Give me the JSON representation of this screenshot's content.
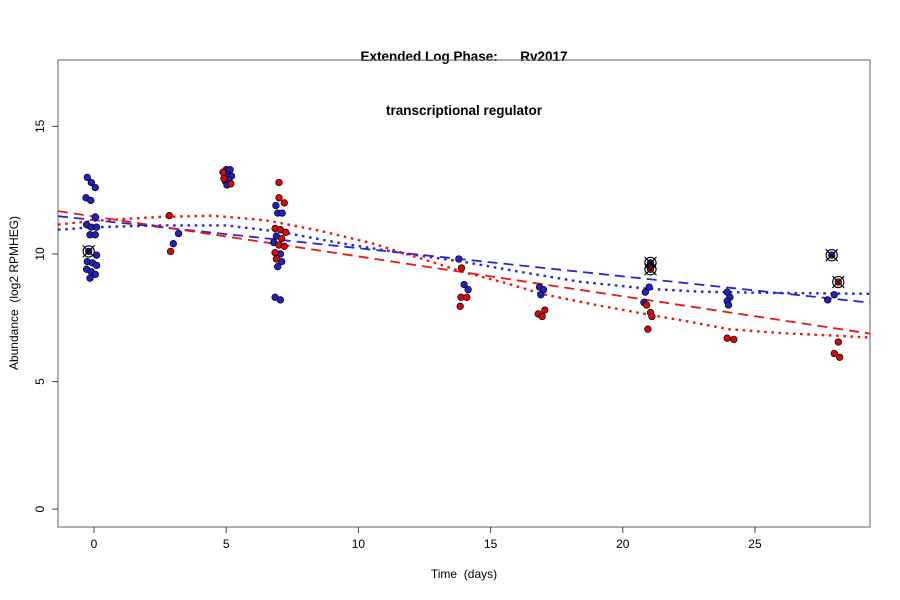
{
  "figure": {
    "title_line1": "Extended Log Phase:      Rv2017",
    "title_line2": "transcriptional regulator",
    "xlabel": "Time  (days)",
    "ylabel": "Abundance  (log2 RPMHEG)"
  },
  "chart_data": {
    "type": "scatter",
    "title": "Extended Log Phase: Rv2017 transcriptional regulator",
    "xlabel": "Time (days)",
    "ylabel": "Abundance (log2 RPMHEG)",
    "xlim": [
      -1.36,
      29.35
    ],
    "ylim": [
      -0.7,
      17.6
    ],
    "x_ticks": [
      0,
      5,
      10,
      15,
      20,
      25
    ],
    "y_ticks": [
      0,
      5,
      10,
      15
    ],
    "grid": false,
    "legend_position": "none",
    "colors": {
      "blue_point": "#2121c4",
      "red_point": "#dd0606",
      "blue_line": "#2626dd",
      "red_line": "#ee1414",
      "outlier_ring": "#000000",
      "box": "#6e6e6e"
    },
    "series": [
      {
        "name": "blue-points",
        "type": "points",
        "color": "blue_point",
        "points": [
          [
            -0.25,
            13.0
          ],
          [
            -0.1,
            12.8
          ],
          [
            0.05,
            12.6
          ],
          [
            -0.3,
            12.2
          ],
          [
            -0.12,
            12.1
          ],
          [
            0.05,
            11.45
          ],
          [
            -0.28,
            11.15
          ],
          [
            -0.1,
            11.05
          ],
          [
            0.1,
            11.05
          ],
          [
            -0.15,
            10.75
          ],
          [
            0.05,
            10.75
          ],
          [
            0.1,
            9.95
          ],
          [
            -0.25,
            9.7
          ],
          [
            -0.05,
            9.65
          ],
          [
            0.1,
            9.55
          ],
          [
            -0.28,
            9.4
          ],
          [
            -0.1,
            9.3
          ],
          [
            0.05,
            9.2
          ],
          [
            -0.15,
            9.05
          ],
          [
            3.2,
            10.8
          ],
          [
            3.0,
            10.4
          ],
          [
            5.0,
            13.3
          ],
          [
            5.15,
            13.3
          ],
          [
            5.05,
            13.1
          ],
          [
            5.2,
            13.05
          ],
          [
            4.97,
            12.85
          ],
          [
            5.1,
            12.9
          ],
          [
            5.03,
            12.7
          ],
          [
            6.88,
            11.9
          ],
          [
            6.95,
            11.6
          ],
          [
            7.12,
            11.6
          ],
          [
            6.9,
            10.7
          ],
          [
            6.8,
            10.45
          ],
          [
            7.05,
            10.0
          ],
          [
            7.1,
            9.7
          ],
          [
            6.95,
            9.5
          ],
          [
            6.85,
            8.3
          ],
          [
            7.05,
            8.2
          ],
          [
            13.8,
            9.8
          ],
          [
            14.0,
            8.8
          ],
          [
            14.15,
            8.6
          ],
          [
            16.85,
            8.7
          ],
          [
            17.0,
            8.6
          ],
          [
            16.9,
            8.4
          ],
          [
            21.0,
            8.7
          ],
          [
            20.85,
            8.5
          ],
          [
            20.8,
            8.1
          ],
          [
            23.95,
            8.5
          ],
          [
            24.05,
            8.3
          ],
          [
            23.95,
            8.15
          ],
          [
            24.0,
            8.0
          ],
          [
            28.0,
            8.4
          ],
          [
            27.75,
            8.2
          ]
        ]
      },
      {
        "name": "red-points",
        "type": "points",
        "color": "red_point",
        "points": [
          [
            2.85,
            11.5
          ],
          [
            2.9,
            10.1
          ],
          [
            4.88,
            13.2
          ],
          [
            4.92,
            12.95
          ],
          [
            5.18,
            12.75
          ],
          [
            7.0,
            12.8
          ],
          [
            7.0,
            12.2
          ],
          [
            7.2,
            12.0
          ],
          [
            6.85,
            11.0
          ],
          [
            7.05,
            10.95
          ],
          [
            7.25,
            10.85
          ],
          [
            7.1,
            10.6
          ],
          [
            7.0,
            10.35
          ],
          [
            7.2,
            10.3
          ],
          [
            6.85,
            10.05
          ],
          [
            6.9,
            9.8
          ],
          [
            13.9,
            9.45
          ],
          [
            13.88,
            8.3
          ],
          [
            14.1,
            8.3
          ],
          [
            13.85,
            7.95
          ],
          [
            17.05,
            7.8
          ],
          [
            16.8,
            7.65
          ],
          [
            16.95,
            7.55
          ],
          [
            20.9,
            8.0
          ],
          [
            21.05,
            7.7
          ],
          [
            21.1,
            7.55
          ],
          [
            20.95,
            7.05
          ],
          [
            23.95,
            6.7
          ],
          [
            24.2,
            6.65
          ],
          [
            28.15,
            6.55
          ],
          [
            28.0,
            6.1
          ],
          [
            28.2,
            5.95
          ]
        ]
      },
      {
        "name": "blue-outlier-points",
        "type": "outlier_points",
        "color": "blue_point",
        "points": [
          [
            -0.2,
            10.1
          ],
          [
            21.05,
            9.65
          ],
          [
            27.9,
            9.95
          ]
        ]
      },
      {
        "name": "red-outlier-points",
        "type": "outlier_points",
        "color": "red_point",
        "points": [
          [
            21.05,
            9.4
          ],
          [
            28.15,
            8.9
          ]
        ]
      },
      {
        "name": "blue-linear-fit",
        "type": "line",
        "style": "dashed",
        "color": "blue_line",
        "points": [
          [
            -1.36,
            11.48
          ],
          [
            29.35,
            8.09
          ]
        ]
      },
      {
        "name": "red-linear-fit",
        "type": "line",
        "style": "dashed",
        "color": "red_line",
        "points": [
          [
            -1.36,
            11.68
          ],
          [
            29.35,
            6.88
          ]
        ]
      },
      {
        "name": "blue-smooth-fit",
        "type": "line",
        "style": "dotted",
        "color": "blue_line",
        "points": [
          [
            -1.36,
            10.95
          ],
          [
            0,
            11.05
          ],
          [
            2.5,
            11.12
          ],
          [
            5,
            11.12
          ],
          [
            7,
            10.87
          ],
          [
            9.3,
            10.43
          ],
          [
            11.6,
            10.04
          ],
          [
            14,
            9.69
          ],
          [
            16.1,
            9.3
          ],
          [
            18.4,
            8.91
          ],
          [
            21,
            8.63
          ],
          [
            23,
            8.52
          ],
          [
            25,
            8.48
          ],
          [
            27,
            8.46
          ],
          [
            29.35,
            8.44
          ]
        ]
      },
      {
        "name": "red-smooth-fit",
        "type": "line",
        "style": "dotted",
        "color": "red_line",
        "points": [
          [
            -1.36,
            11.15
          ],
          [
            0,
            11.3
          ],
          [
            2.5,
            11.45
          ],
          [
            4.5,
            11.5
          ],
          [
            6.5,
            11.32
          ],
          [
            8.5,
            10.92
          ],
          [
            10.5,
            10.42
          ],
          [
            12.5,
            9.78
          ],
          [
            14,
            9.28
          ],
          [
            15.5,
            8.88
          ],
          [
            17,
            8.42
          ],
          [
            19,
            8.0
          ],
          [
            21,
            7.62
          ],
          [
            22.5,
            7.35
          ],
          [
            24,
            7.05
          ],
          [
            26,
            6.9
          ],
          [
            28,
            6.8
          ],
          [
            29.35,
            6.72
          ]
        ]
      }
    ]
  }
}
